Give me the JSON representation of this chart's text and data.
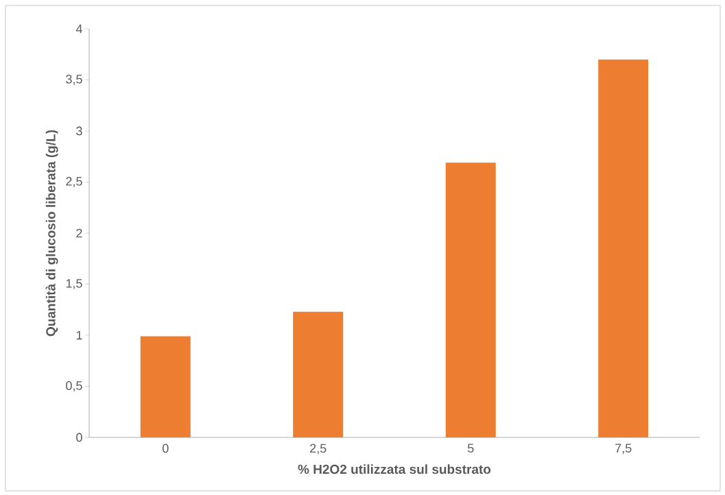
{
  "chart_data": {
    "type": "bar",
    "xlabel": "% H2O2 utilizzata sul substrato",
    "ylabel": "Quantità di glucosio liberata (g/L)",
    "categories": [
      "0",
      "2,5",
      "5",
      "7,5"
    ],
    "values": [
      0.99,
      1.23,
      2.69,
      3.7
    ],
    "color": "#ed7d31",
    "ylim": [
      0,
      4
    ],
    "yticks": [
      0,
      {
        "value": 0.5,
        "label": "0,5"
      },
      1,
      {
        "value": 1.5,
        "label": "1,5"
      },
      2,
      {
        "value": 2.5,
        "label": "2,5"
      },
      3,
      {
        "value": 3.5,
        "label": "3,5"
      },
      4
    ]
  }
}
